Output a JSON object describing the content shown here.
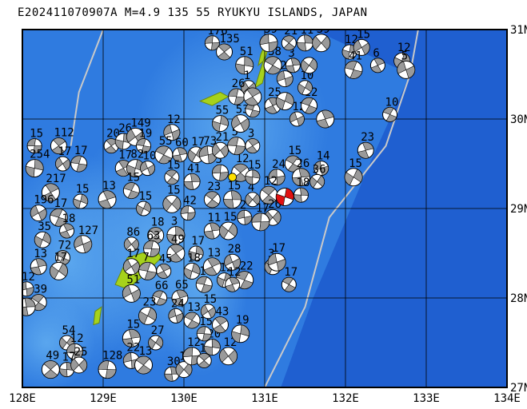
{
  "title": "E202411070907A M=4.9 135 55 RYUKYU ISLANDS, JAPAN",
  "event": {
    "id": "E202411070907A",
    "magnitude_label": "M=4.9",
    "region": "RYUKYU ISLANDS, JAPAN",
    "lon": 131.25,
    "lat": 29.13
  },
  "extent": {
    "lon_min": 128,
    "lon_max": 134,
    "lat_min": 27,
    "lat_max": 31
  },
  "lon_ticks": [
    {
      "value": 128,
      "label": "128E"
    },
    {
      "value": 129,
      "label": "129E"
    },
    {
      "value": 130,
      "label": "130E"
    },
    {
      "value": 131,
      "label": "131E"
    },
    {
      "value": 132,
      "label": "132E"
    },
    {
      "value": 133,
      "label": "133E"
    },
    {
      "value": 134,
      "label": "134E"
    }
  ],
  "lat_ticks": [
    {
      "value": 31,
      "label": "31N"
    },
    {
      "value": 30,
      "label": "30N"
    },
    {
      "value": 29,
      "label": "29N"
    },
    {
      "value": 28,
      "label": "28N"
    },
    {
      "value": 27,
      "label": "27N"
    }
  ],
  "colors": {
    "ocean_deep": "#1f5fd0",
    "ocean_mid": "#2f7be0",
    "ocean_shallow": "#4a9ae8",
    "grid": "#000000",
    "trench_line": "#c9c9c9",
    "mechanism_fill": "#9a9a9a",
    "target_fill": "#e01010",
    "island": "#a6d21c"
  },
  "islands": [
    {
      "name": "Yakushima-area",
      "pts": [
        [
          131.0,
          30.66
        ],
        [
          131.03,
          30.75
        ],
        [
          131.0,
          30.83
        ],
        [
          130.95,
          30.72
        ],
        [
          130.92,
          30.6
        ]
      ]
    },
    {
      "name": "Tanegashima",
      "pts": [
        [
          130.97,
          30.4
        ],
        [
          131.03,
          30.6
        ],
        [
          131.0,
          30.7
        ],
        [
          130.93,
          30.5
        ],
        [
          130.88,
          30.35
        ]
      ]
    },
    {
      "name": "Amami-Oshima",
      "pts": [
        [
          129.3,
          28.45
        ],
        [
          129.65,
          28.55
        ],
        [
          129.72,
          28.45
        ],
        [
          129.5,
          28.25
        ],
        [
          129.3,
          28.1
        ],
        [
          129.15,
          28.15
        ]
      ]
    },
    {
      "name": "Tokunoshima",
      "pts": [
        [
          128.9,
          27.85
        ],
        [
          128.98,
          27.9
        ],
        [
          128.95,
          27.72
        ],
        [
          128.88,
          27.7
        ]
      ]
    },
    {
      "name": "Kuchinoerabu",
      "pts": [
        [
          130.2,
          30.2
        ],
        [
          130.45,
          30.3
        ],
        [
          130.55,
          30.25
        ],
        [
          130.35,
          30.15
        ]
      ]
    }
  ],
  "trench_lines": [
    [
      [
        131.0,
        27.0
      ],
      [
        131.5,
        27.9
      ],
      [
        131.8,
        28.9
      ],
      [
        132.5,
        29.7
      ],
      [
        132.8,
        30.5
      ],
      [
        132.9,
        31.0
      ]
    ],
    [
      [
        129.0,
        31.0
      ],
      [
        128.7,
        30.3
      ],
      [
        128.6,
        29.7
      ]
    ]
  ],
  "mechanisms": [
    {
      "lon": 128.15,
      "lat": 29.7,
      "label": "15"
    },
    {
      "lon": 128.45,
      "lat": 29.7,
      "label": "112"
    },
    {
      "lon": 128.15,
      "lat": 29.45,
      "label": "254"
    },
    {
      "lon": 128.5,
      "lat": 29.5,
      "label": "17"
    },
    {
      "lon": 128.7,
      "lat": 29.5,
      "label": "17"
    },
    {
      "lon": 128.35,
      "lat": 29.18,
      "label": "217"
    },
    {
      "lon": 128.72,
      "lat": 29.08,
      "label": "15"
    },
    {
      "lon": 128.2,
      "lat": 28.95,
      "label": "196"
    },
    {
      "lon": 128.45,
      "lat": 28.9,
      "label": "17"
    },
    {
      "lon": 128.55,
      "lat": 28.75,
      "label": "18"
    },
    {
      "lon": 128.25,
      "lat": 28.65,
      "label": "35"
    },
    {
      "lon": 128.75,
      "lat": 28.6,
      "label": "127"
    },
    {
      "lon": 128.5,
      "lat": 28.45,
      "label": "72"
    },
    {
      "lon": 128.2,
      "lat": 28.35,
      "label": "13"
    },
    {
      "lon": 128.45,
      "lat": 28.3,
      "label": "17"
    },
    {
      "lon": 128.05,
      "lat": 28.1,
      "label": "12"
    },
    {
      "lon": 128.2,
      "lat": 27.95,
      "label": "39"
    },
    {
      "lon": 128.05,
      "lat": 27.9,
      "label": ""
    },
    {
      "lon": 128.55,
      "lat": 27.5,
      "label": "54"
    },
    {
      "lon": 128.65,
      "lat": 27.4,
      "label": "12"
    },
    {
      "lon": 128.35,
      "lat": 27.2,
      "label": "49"
    },
    {
      "lon": 128.55,
      "lat": 27.2,
      "label": "17"
    },
    {
      "lon": 128.7,
      "lat": 27.25,
      "label": "25"
    },
    {
      "lon": 129.05,
      "lat": 27.2,
      "label": "128"
    },
    {
      "lon": 129.1,
      "lat": 29.7,
      "label": "20"
    },
    {
      "lon": 129.25,
      "lat": 29.75,
      "label": "26"
    },
    {
      "lon": 129.4,
      "lat": 29.8,
      "label": "149"
    },
    {
      "lon": 129.5,
      "lat": 29.7,
      "label": "19"
    },
    {
      "lon": 129.25,
      "lat": 29.45,
      "label": "17"
    },
    {
      "lon": 129.4,
      "lat": 29.45,
      "label": "82"
    },
    {
      "lon": 129.55,
      "lat": 29.45,
      "label": "10"
    },
    {
      "lon": 129.35,
      "lat": 29.2,
      "label": "15"
    },
    {
      "lon": 129.05,
      "lat": 29.1,
      "label": "13"
    },
    {
      "lon": 129.5,
      "lat": 29.0,
      "label": "15"
    },
    {
      "lon": 129.85,
      "lat": 29.85,
      "label": "12"
    },
    {
      "lon": 129.75,
      "lat": 29.6,
      "label": "55"
    },
    {
      "lon": 129.95,
      "lat": 29.6,
      "label": "60"
    },
    {
      "lon": 130.15,
      "lat": 29.6,
      "label": "17"
    },
    {
      "lon": 130.3,
      "lat": 29.6,
      "label": "73"
    },
    {
      "lon": 129.85,
      "lat": 29.35,
      "label": "15"
    },
    {
      "lon": 130.1,
      "lat": 29.3,
      "label": "41"
    },
    {
      "lon": 129.85,
      "lat": 29.05,
      "label": "15"
    },
    {
      "lon": 130.05,
      "lat": 28.95,
      "label": "42"
    },
    {
      "lon": 129.65,
      "lat": 28.7,
      "label": "18"
    },
    {
      "lon": 129.9,
      "lat": 28.7,
      "label": "3"
    },
    {
      "lon": 129.35,
      "lat": 28.6,
      "label": "86"
    },
    {
      "lon": 129.6,
      "lat": 28.55,
      "label": "63"
    },
    {
      "lon": 129.9,
      "lat": 28.5,
      "label": "49"
    },
    {
      "lon": 130.15,
      "lat": 28.5,
      "label": "17"
    },
    {
      "lon": 129.35,
      "lat": 28.35,
      "label": "17"
    },
    {
      "lon": 129.55,
      "lat": 28.3,
      "label": "7"
    },
    {
      "lon": 129.75,
      "lat": 28.3,
      "label": "45"
    },
    {
      "lon": 130.1,
      "lat": 28.3,
      "label": "18"
    },
    {
      "lon": 129.35,
      "lat": 28.05,
      "label": "51"
    },
    {
      "lon": 129.7,
      "lat": 28.0,
      "label": "66"
    },
    {
      "lon": 129.95,
      "lat": 28.0,
      "label": "65"
    },
    {
      "lon": 129.55,
      "lat": 27.8,
      "label": "23"
    },
    {
      "lon": 129.9,
      "lat": 27.8,
      "label": "24"
    },
    {
      "lon": 130.1,
      "lat": 27.75,
      "label": "13"
    },
    {
      "lon": 129.35,
      "lat": 27.55,
      "label": "15"
    },
    {
      "lon": 129.65,
      "lat": 27.5,
      "label": "27"
    },
    {
      "lon": 129.35,
      "lat": 27.3,
      "label": "22"
    },
    {
      "lon": 129.5,
      "lat": 27.25,
      "label": "13"
    },
    {
      "lon": 129.85,
      "lat": 27.15,
      "label": "30"
    },
    {
      "lon": 130.0,
      "lat": 27.2,
      "label": "10"
    },
    {
      "lon": 130.1,
      "lat": 27.35,
      "label": "12"
    },
    {
      "lon": 130.25,
      "lat": 27.3,
      "label": "15"
    },
    {
      "lon": 130.35,
      "lat": 27.45,
      "label": "20"
    },
    {
      "lon": 130.55,
      "lat": 27.35,
      "label": "12"
    },
    {
      "lon": 130.25,
      "lat": 27.6,
      "label": "15"
    },
    {
      "lon": 130.45,
      "lat": 27.7,
      "label": "43"
    },
    {
      "lon": 130.7,
      "lat": 27.6,
      "label": "19"
    },
    {
      "lon": 130.3,
      "lat": 27.85,
      "label": "15"
    },
    {
      "lon": 130.25,
      "lat": 28.15,
      "label": "16"
    },
    {
      "lon": 130.35,
      "lat": 28.35,
      "label": "13"
    },
    {
      "lon": 130.5,
      "lat": 28.2,
      "label": "12"
    },
    {
      "lon": 130.6,
      "lat": 28.4,
      "label": "28"
    },
    {
      "lon": 130.75,
      "lat": 28.2,
      "label": "22"
    },
    {
      "lon": 130.6,
      "lat": 28.15,
      "label": "12"
    },
    {
      "lon": 131.1,
      "lat": 28.35,
      "label": "3"
    },
    {
      "lon": 131.15,
      "lat": 28.4,
      "label": "17"
    },
    {
      "lon": 131.3,
      "lat": 28.15,
      "label": "17"
    },
    {
      "lon": 130.35,
      "lat": 28.75,
      "label": "11"
    },
    {
      "lon": 130.55,
      "lat": 28.75,
      "label": "15"
    },
    {
      "lon": 130.75,
      "lat": 28.9,
      "label": "2"
    },
    {
      "lon": 130.35,
      "lat": 29.1,
      "label": "23"
    },
    {
      "lon": 130.6,
      "lat": 29.1,
      "label": "15"
    },
    {
      "lon": 130.85,
      "lat": 29.1,
      "label": "4"
    },
    {
      "lon": 130.45,
      "lat": 29.4,
      "label": "3"
    },
    {
      "lon": 130.7,
      "lat": 29.4,
      "label": "12"
    },
    {
      "lon": 130.85,
      "lat": 29.35,
      "label": "15"
    },
    {
      "lon": 130.45,
      "lat": 29.65,
      "label": "21"
    },
    {
      "lon": 130.65,
      "lat": 29.7,
      "label": "5"
    },
    {
      "lon": 130.85,
      "lat": 29.7,
      "label": "3"
    },
    {
      "lon": 130.45,
      "lat": 29.95,
      "label": "55"
    },
    {
      "lon": 130.7,
      "lat": 29.95,
      "label": "53"
    },
    {
      "lon": 130.85,
      "lat": 30.1,
      "label": "15"
    },
    {
      "lon": 131.1,
      "lat": 30.15,
      "label": "25"
    },
    {
      "lon": 131.25,
      "lat": 30.2,
      "label": ""
    },
    {
      "lon": 131.4,
      "lat": 30.0,
      "label": "12"
    },
    {
      "lon": 131.55,
      "lat": 30.15,
      "label": "12"
    },
    {
      "lon": 131.75,
      "lat": 30.0,
      "label": ""
    },
    {
      "lon": 131.5,
      "lat": 30.35,
      "label": "10"
    },
    {
      "lon": 131.25,
      "lat": 30.45,
      "label": "22"
    },
    {
      "lon": 131.1,
      "lat": 30.6,
      "label": "38"
    },
    {
      "lon": 131.35,
      "lat": 30.6,
      "label": "3"
    },
    {
      "lon": 131.55,
      "lat": 30.6,
      "label": ""
    },
    {
      "lon": 131.05,
      "lat": 30.85,
      "label": "39"
    },
    {
      "lon": 131.3,
      "lat": 30.85,
      "label": "21"
    },
    {
      "lon": 131.5,
      "lat": 30.85,
      "label": "11"
    },
    {
      "lon": 131.7,
      "lat": 30.85,
      "label": "39"
    },
    {
      "lon": 130.35,
      "lat": 30.85,
      "label": "176"
    },
    {
      "lon": 130.5,
      "lat": 30.75,
      "label": "135"
    },
    {
      "lon": 130.75,
      "lat": 30.6,
      "label": "51"
    },
    {
      "lon": 130.8,
      "lat": 30.35,
      "label": "1"
    },
    {
      "lon": 130.65,
      "lat": 30.25,
      "label": "26"
    },
    {
      "lon": 130.85,
      "lat": 30.25,
      "label": ""
    },
    {
      "lon": 132.05,
      "lat": 30.75,
      "label": "12"
    },
    {
      "lon": 132.2,
      "lat": 30.8,
      "label": "15"
    },
    {
      "lon": 132.1,
      "lat": 30.55,
      "label": "41"
    },
    {
      "lon": 132.4,
      "lat": 30.6,
      "label": "6"
    },
    {
      "lon": 132.7,
      "lat": 30.65,
      "label": "12"
    },
    {
      "lon": 132.75,
      "lat": 30.55,
      "label": "5"
    },
    {
      "lon": 132.55,
      "lat": 30.05,
      "label": "10"
    },
    {
      "lon": 132.25,
      "lat": 29.65,
      "label": "23"
    },
    {
      "lon": 132.1,
      "lat": 29.35,
      "label": "15"
    },
    {
      "lon": 131.7,
      "lat": 29.45,
      "label": "14"
    },
    {
      "lon": 131.35,
      "lat": 29.5,
      "label": "15"
    },
    {
      "lon": 131.45,
      "lat": 29.35,
      "label": "26"
    },
    {
      "lon": 131.65,
      "lat": 29.3,
      "label": "36"
    },
    {
      "lon": 131.15,
      "lat": 29.35,
      "label": "24"
    },
    {
      "lon": 131.05,
      "lat": 29.15,
      "label": "12"
    },
    {
      "lon": 131.45,
      "lat": 29.15,
      "label": "18"
    },
    {
      "lon": 131.1,
      "lat": 28.9,
      "label": "26"
    },
    {
      "lon": 130.95,
      "lat": 28.85,
      "label": "17"
    }
  ]
}
